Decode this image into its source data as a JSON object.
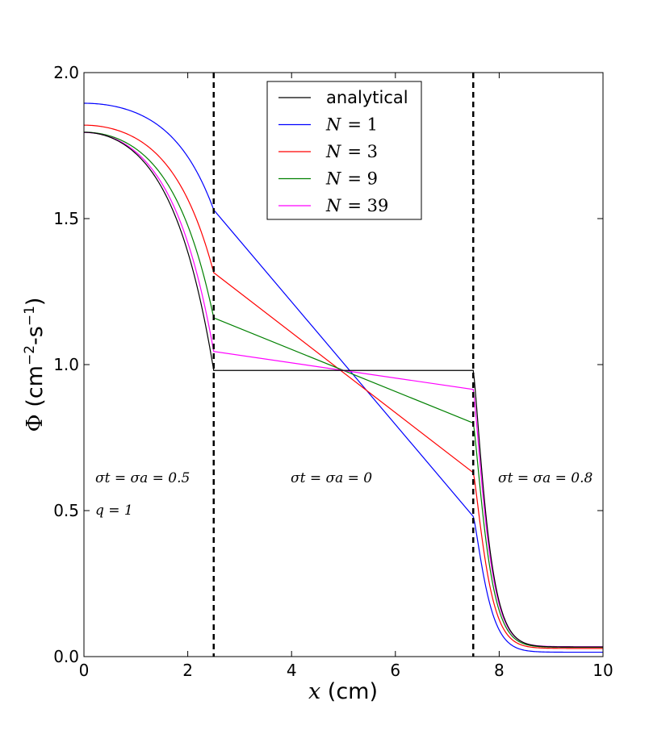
{
  "chart_data": {
    "type": "line",
    "xlabel_var": "x",
    "xlabel_unit": " (cm)",
    "ylabel_symbol": "Φ",
    "ylabel_unit_open": " (cm",
    "ylabel_exp1": "−2",
    "ylabel_mid": "-s",
    "ylabel_exp2": "−1",
    "ylabel_close": ")",
    "xlim": [
      0,
      10
    ],
    "ylim": [
      0,
      2
    ],
    "xticks": [
      0,
      2,
      4,
      6,
      8,
      10
    ],
    "yticks": [
      0.0,
      0.5,
      1.0,
      1.5,
      2.0
    ],
    "xtick_labels": [
      "0",
      "2",
      "4",
      "6",
      "8",
      "10"
    ],
    "ytick_labels": [
      "0.0",
      "0.5",
      "1.0",
      "1.5",
      "2.0"
    ],
    "region_boundaries": [
      2.5,
      7.5
    ],
    "annotations": {
      "left": {
        "line1": "σt = σa = 0.5",
        "line2": "q = 1"
      },
      "middle": {
        "line1": "σt = σa = 0"
      },
      "right": {
        "line1": "σt = σa = 0.8"
      }
    },
    "legend_position": "top-center",
    "series": [
      {
        "name": "analytical",
        "label_plain": "analytical",
        "color": "#000000",
        "params": {
          "phi0": 1.7955,
          "phi_left": 0.98,
          "phi_right": 0.98,
          "phi_x75": 0.98,
          "tail": 0.033
        }
      },
      {
        "name": "N = 1",
        "label_var": "N",
        "label_val": "= 1",
        "color": "#0000ff",
        "params": {
          "phi0": 1.895,
          "phi_left": 1.53,
          "phi_right": 1.53,
          "phi_x75": 0.48,
          "tail": 0.015
        }
      },
      {
        "name": "N = 3",
        "label_var": "N",
        "label_val": "= 3",
        "color": "#ff0000",
        "params": {
          "phi0": 1.82,
          "phi_left": 1.315,
          "phi_right": 1.315,
          "phi_x75": 0.63,
          "tail": 0.028
        }
      },
      {
        "name": "N = 9",
        "label_var": "N",
        "label_val": "= 9",
        "color": "#008000",
        "params": {
          "phi0": 1.796,
          "phi_left": 1.16,
          "phi_right": 1.16,
          "phi_x75": 0.8,
          "tail": 0.032
        }
      },
      {
        "name": "N = 39",
        "label_var": "N",
        "label_val": "= 39",
        "color": "#ff00ff",
        "params": {
          "phi0": 1.795,
          "phi_left": 1.045,
          "phi_right": 1.045,
          "phi_x75": 0.915,
          "tail": 0.034
        }
      }
    ]
  }
}
